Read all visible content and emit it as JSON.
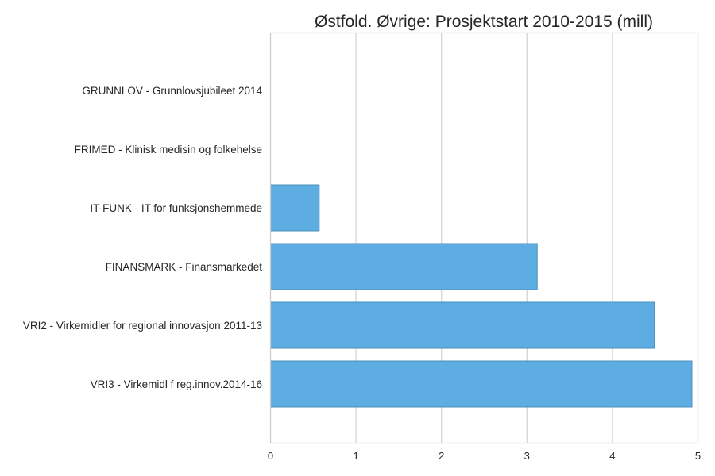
{
  "chart_data": {
    "type": "bar",
    "orientation": "horizontal",
    "title": "Østfold. Øvrige: Prosjektstart 2010-2015 (mill)",
    "xlabel": "",
    "ylabel": "",
    "xlim": [
      0,
      5
    ],
    "xticks": [
      0,
      1,
      2,
      3,
      4,
      5
    ],
    "grid": "vertical",
    "categories": [
      "GRUNNLOV - Grunnlovsjubileet 2014",
      "FRIMED - Klinisk medisin og folkehelse",
      "IT-FUNK - IT for funksjonshemmede",
      "FINANSMARK - Finansmarkedet",
      "VRI2 - Virkemidler for regional innovasjon 2011-13",
      "VRI3 - Virkemidl f reg.innov.2014-16"
    ],
    "values": [
      0,
      0,
      0.57,
      3.12,
      4.49,
      4.93
    ],
    "bar_color": "#5dade2",
    "bar_edge_color": "#4a8fbe"
  }
}
